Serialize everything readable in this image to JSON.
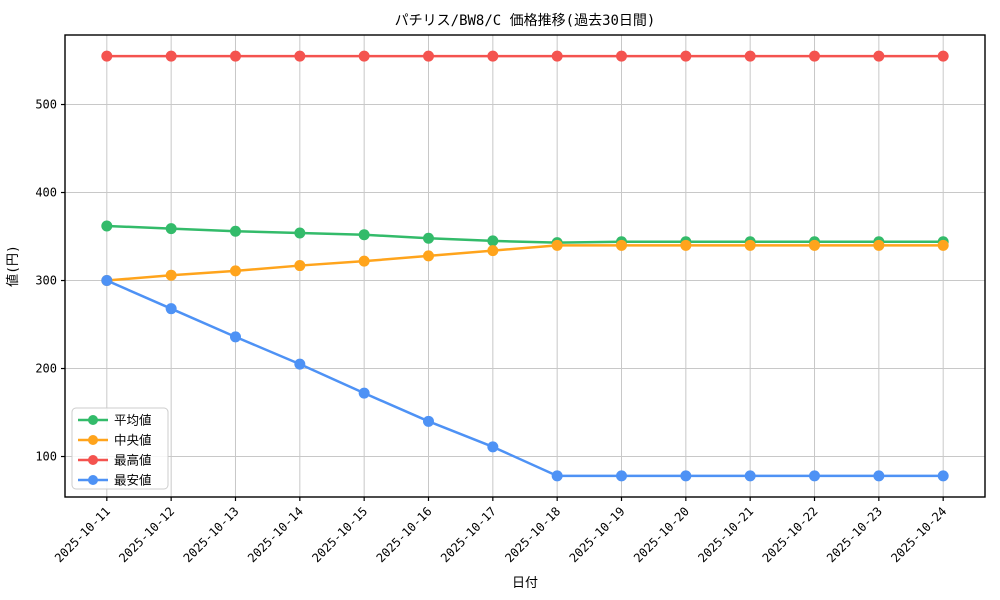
{
  "chart_data": {
    "type": "line",
    "title": "パチリス/BW8/C 価格推移(過去30日間)",
    "xlabel": "日付",
    "ylabel": "値(円)",
    "x": [
      "2025-10-11",
      "2025-10-12",
      "2025-10-13",
      "2025-10-14",
      "2025-10-15",
      "2025-10-16",
      "2025-10-17",
      "2025-10-18",
      "2025-10-19",
      "2025-10-20",
      "2025-10-21",
      "2025-10-22",
      "2025-10-23",
      "2025-10-24"
    ],
    "series": [
      {
        "key": "average",
        "name": "平均値",
        "color": "#33bb6a",
        "values": [
          362,
          359,
          356,
          354,
          352,
          348,
          345,
          343,
          344,
          344,
          344,
          344,
          344,
          344
        ]
      },
      {
        "key": "median",
        "name": "中央値",
        "color": "#ffa41c",
        "values": [
          300,
          306,
          311,
          317,
          322,
          328,
          334,
          340,
          340,
          340,
          340,
          340,
          340,
          340
        ]
      },
      {
        "key": "max",
        "name": "最高値",
        "color": "#f4534f",
        "values": [
          555,
          555,
          555,
          555,
          555,
          555,
          555,
          555,
          555,
          555,
          555,
          555,
          555,
          555
        ]
      },
      {
        "key": "min",
        "name": "最安値",
        "color": "#4e92f5",
        "values": [
          300,
          268,
          236,
          205,
          172,
          140,
          111,
          78,
          78,
          78,
          78,
          78,
          78,
          78
        ]
      }
    ],
    "yticks": [
      100,
      200,
      300,
      400,
      500
    ],
    "xlim": [
      -0.65,
      13.65
    ],
    "ylim": [
      54,
      579
    ],
    "grid": true,
    "grid_color": "#c8c8c8",
    "axis_color": "#000000",
    "legend_position": "lower left",
    "marker": "circle",
    "x_tick_rotation_deg": 45
  }
}
